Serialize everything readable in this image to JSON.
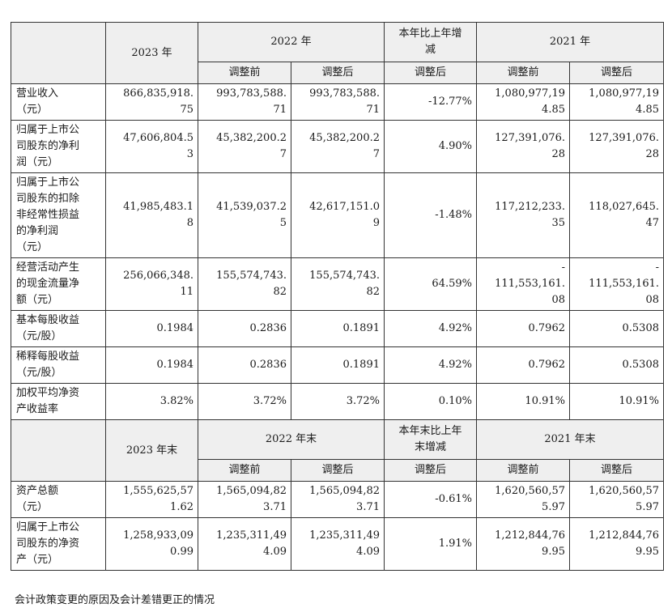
{
  "header1": {
    "year_2023": "2023 年",
    "year_2022": "2022 年",
    "change": "本年比上年增\n减",
    "year_2021": "2021 年",
    "sub": [
      "调整前",
      "调整后",
      "调整后",
      "调整前",
      "调整后"
    ]
  },
  "rows1": [
    {
      "label": "营业收入\n（元）",
      "values": [
        "866,835,918.\n75",
        "993,783,588.\n71",
        "993,783,588.\n71",
        "-12.77%",
        "1,080,977,19\n4.85",
        "1,080,977,19\n4.85"
      ]
    },
    {
      "label": "归属于上市公\n司股东的净利\n润（元）",
      "values": [
        "47,606,804.5\n3",
        "45,382,200.2\n7",
        "45,382,200.2\n7",
        "4.90%",
        "127,391,076.\n28",
        "127,391,076.\n28"
      ]
    },
    {
      "label": "归属于上市公\n司股东的扣除\n非经常性损益\n的净利润\n（元）",
      "values": [
        "41,985,483.1\n8",
        "41,539,037.2\n5",
        "42,617,151.0\n9",
        "-1.48%",
        "117,212,233.\n35",
        "118,027,645.\n47"
      ]
    },
    {
      "label": "经营活动产生\n的现金流量净\n额（元）",
      "values": [
        "256,066,348.\n11",
        "155,574,743.\n82",
        "155,574,743.\n82",
        "64.59%",
        "-\n111,553,161.\n08",
        "-\n111,553,161.\n08"
      ]
    },
    {
      "label": "基本每股收益\n（元/股）",
      "values": [
        "0.1984",
        "0.2836",
        "0.1891",
        "4.92%",
        "0.7962",
        "0.5308"
      ]
    },
    {
      "label": "稀释每股收益\n（元/股）",
      "values": [
        "0.1984",
        "0.2836",
        "0.1891",
        "4.92%",
        "0.7962",
        "0.5308"
      ]
    },
    {
      "label": "加权平均净资\n产收益率",
      "values": [
        "3.82%",
        "3.72%",
        "3.72%",
        "0.10%",
        "10.91%",
        "10.91%"
      ]
    }
  ],
  "header2": {
    "year_2023": "2023 年末",
    "year_2022": "2022 年末",
    "change": "本年末比上年\n末增减",
    "year_2021": "2021 年末",
    "sub": [
      "调整前",
      "调整后",
      "调整后",
      "调整前",
      "调整后"
    ]
  },
  "rows2": [
    {
      "label": "资产总额\n（元）",
      "values": [
        "1,555,625,57\n1.62",
        "1,565,094,82\n3.71",
        "1,565,094,82\n3.71",
        "-0.61%",
        "1,620,560,57\n5.97",
        "1,620,560,57\n5.97"
      ]
    },
    {
      "label": "归属于上市公\n司股东的净资\n产（元）",
      "values": [
        "1,258,933,09\n0.99",
        "1,235,311,49\n4.09",
        "1,235,311,49\n4.09",
        "1.91%",
        "1,212,844,76\n9.95",
        "1,212,844,76\n9.95"
      ]
    }
  ],
  "footer_text": "会计政策变更的原因及会计差错更正的情况"
}
